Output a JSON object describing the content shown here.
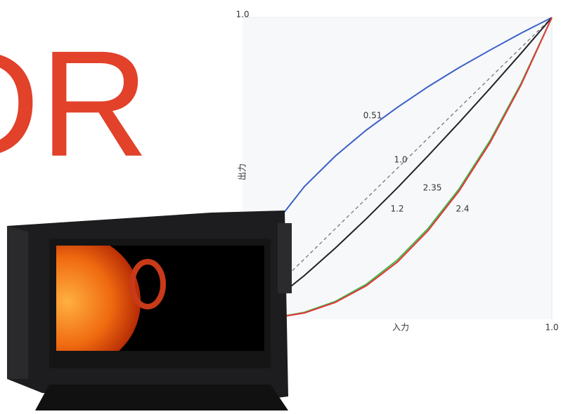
{
  "headline": "DR",
  "chart_data": {
    "type": "line",
    "x_label": "入力",
    "y_label": "出力",
    "x": [
      0,
      0.1,
      0.2,
      0.3,
      0.4,
      0.5,
      0.6,
      0.7,
      0.8,
      0.9,
      1
    ],
    "series": [
      {
        "name": "0.51",
        "color": "#3a5fc8",
        "dash": false,
        "values": [
          0,
          0.309,
          0.44,
          0.541,
          0.627,
          0.702,
          0.771,
          0.834,
          0.892,
          0.948,
          1
        ]
      },
      {
        "name": "1.0",
        "color": "#777777",
        "dash": true,
        "values": [
          0,
          0.1,
          0.2,
          0.3,
          0.4,
          0.5,
          0.6,
          0.7,
          0.8,
          0.9,
          1
        ]
      },
      {
        "name": "2.35",
        "color": "#3cb846",
        "dash": false,
        "values": [
          0,
          0.0045,
          0.023,
          0.059,
          0.116,
          0.196,
          0.301,
          0.432,
          0.592,
          0.781,
          1
        ]
      },
      {
        "name": "1.2",
        "color": "#222222",
        "dash": false,
        "values": [
          0,
          0.063,
          0.145,
          0.236,
          0.333,
          0.435,
          0.542,
          0.652,
          0.765,
          0.881,
          1
        ]
      },
      {
        "name": "2.4",
        "color": "#e8353a",
        "dash": false,
        "values": [
          0,
          0.004,
          0.021,
          0.056,
          0.111,
          0.189,
          0.294,
          0.425,
          0.585,
          0.776,
          1
        ]
      }
    ],
    "xlim": [
      0,
      1
    ],
    "ylim": [
      0,
      1
    ],
    "xticks": [
      {
        "value": 1,
        "label": "1.0"
      }
    ],
    "yticks": [
      {
        "value": 1,
        "label": "1.0"
      }
    ]
  }
}
